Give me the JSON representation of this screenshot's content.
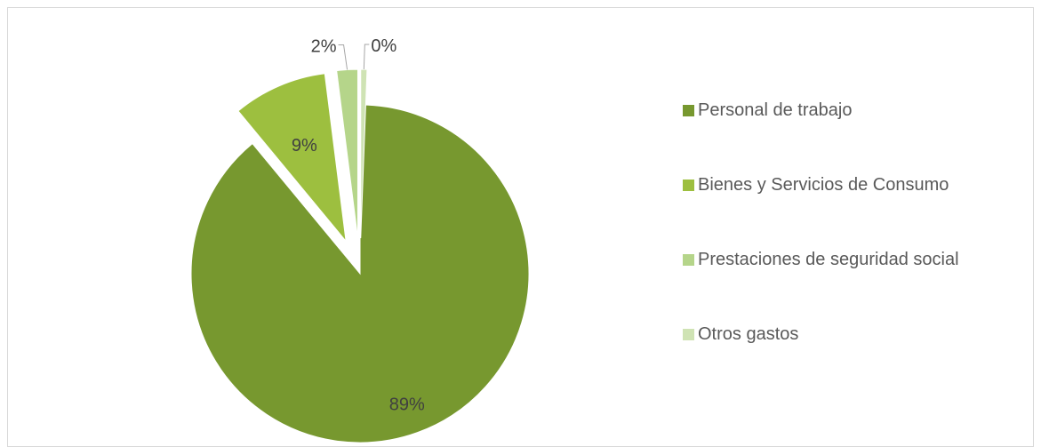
{
  "chart_data": {
    "type": "pie",
    "title": "",
    "categories": [
      "Personal de trabajo",
      "Bienes y Servicios de Consumo",
      "Prestaciones de seguridad social",
      "Otros gastos"
    ],
    "values": [
      89,
      9,
      2,
      0
    ],
    "data_labels": [
      "89%",
      "9%",
      "2%",
      "0%"
    ],
    "colors": [
      "#77982f",
      "#9dbf3f",
      "#b5d58a",
      "#cfe3b4"
    ],
    "exploded": true,
    "legend_position": "right"
  }
}
